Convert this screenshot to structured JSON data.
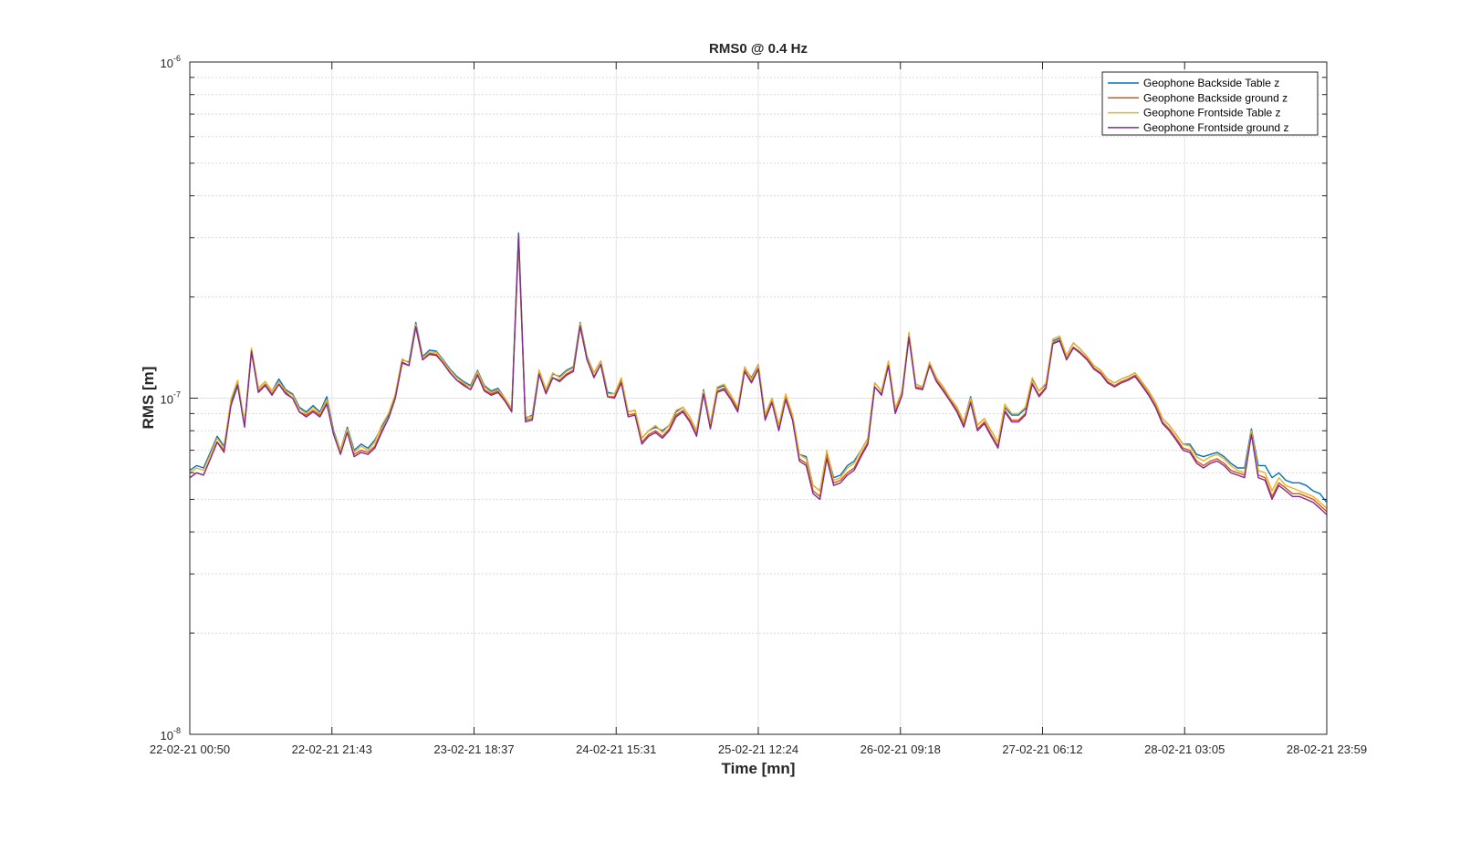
{
  "chart_data": {
    "type": "line",
    "title": "RMS0 @ 0.4 Hz",
    "xlabel": "Time [mn]",
    "ylabel": "RMS [m]",
    "yscale": "log",
    "ylim": [
      1e-08,
      1e-06
    ],
    "ytick_labels": [
      {
        "base": "10",
        "exp": "-8",
        "value": 1e-08
      },
      {
        "base": "10",
        "exp": "-7",
        "value": 1e-07
      },
      {
        "base": "10",
        "exp": "-6",
        "value": 1e-06
      }
    ],
    "xtick_labels": [
      "22-02-21 00:50",
      "22-02-21 21:43",
      "23-02-21 18:37",
      "24-02-21 15:31",
      "25-02-21 12:24",
      "26-02-21 09:18",
      "27-02-21 06:12",
      "28-02-21 03:05",
      "28-02-21 23:59"
    ],
    "grid": true,
    "legend_position": "top-right",
    "series": [
      {
        "name": "Geophone Backside Table z",
        "color": "#0072BD",
        "values": [
          6.1e-08,
          6.3e-08,
          6.2e-08,
          6.9e-08,
          7.7e-08,
          7.2e-08,
          9.7e-08,
          1.12e-07,
          8.4e-08,
          1.4e-07,
          1.07e-07,
          1.12e-07,
          1.05e-07,
          1.14e-07,
          1.06e-07,
          1.03e-07,
          9.4e-08,
          9.1e-08,
          9.5e-08,
          9.1e-08,
          1.01e-07,
          8e-08,
          7e-08,
          8.2e-08,
          7e-08,
          7.3e-08,
          7.1e-08,
          7.5e-08,
          8.2e-08,
          8.9e-08,
          1.02e-07,
          1.3e-07,
          1.28e-07,
          1.68e-07,
          1.33e-07,
          1.39e-07,
          1.38e-07,
          1.3e-07,
          1.22e-07,
          1.16e-07,
          1.12e-07,
          1.09e-07,
          1.21e-07,
          1.09e-07,
          1.05e-07,
          1.07e-07,
          1e-07,
          9.3e-08,
          3.1e-07,
          8.7e-08,
          8.9e-08,
          1.21e-07,
          1.06e-07,
          1.18e-07,
          1.16e-07,
          1.21e-07,
          1.24e-07,
          1.68e-07,
          1.33e-07,
          1.19e-07,
          1.29e-07,
          1.04e-07,
          1.03e-07,
          1.14e-07,
          9.1e-08,
          9.2e-08,
          7.6e-08,
          8e-08,
          8.2e-08,
          8e-08,
          8.3e-08,
          9.1e-08,
          9.4e-08,
          8.8e-08,
          8e-08,
          1.06e-07,
          8.4e-08,
          1.07e-07,
          1.09e-07,
          1.02e-07,
          9.3e-08,
          1.23e-07,
          1.15e-07,
          1.26e-07,
          8.9e-08,
          1e-07,
          8.3e-08,
          1.02e-07,
          8.9e-08,
          6.8e-08,
          6.7e-08,
          5.5e-08,
          5.3e-08,
          6.9e-08,
          5.8e-08,
          5.9e-08,
          6.3e-08,
          6.5e-08,
          7e-08,
          7.6e-08,
          1.11e-07,
          1.05e-07,
          1.28e-07,
          9.3e-08,
          1.05e-07,
          1.55e-07,
          1.1e-07,
          1.08e-07,
          1.27e-07,
          1.15e-07,
          1.08e-07,
          1e-07,
          9.4e-08,
          8.5e-08,
          1.01e-07,
          8.3e-08,
          8.7e-08,
          8e-08,
          7.4e-08,
          9.4e-08,
          8.9e-08,
          8.9e-08,
          9.3e-08,
          1.14e-07,
          1.05e-07,
          1.1e-07,
          1.48e-07,
          1.51e-07,
          1.34e-07,
          1.46e-07,
          1.4e-07,
          1.33e-07,
          1.25e-07,
          1.21e-07,
          1.14e-07,
          1.11e-07,
          1.14e-07,
          1.16e-07,
          1.19e-07,
          1.12e-07,
          1.05e-07,
          9.7e-08,
          8.7e-08,
          8.3e-08,
          7.8e-08,
          7.3e-08,
          7.3e-08,
          6.8e-08,
          6.7e-08,
          6.8e-08,
          6.9e-08,
          6.7e-08,
          6.4e-08,
          6.2e-08,
          6.2e-08,
          8.1e-08,
          6.3e-08,
          6.3e-08,
          5.8e-08,
          6e-08,
          5.7e-08,
          5.6e-08,
          5.6e-08,
          5.5e-08,
          5.3e-08,
          5.2e-08,
          4.9e-08
        ]
      },
      {
        "name": "Geophone Backside ground z",
        "color": "#D95319",
        "values": [
          5.8e-08,
          6e-08,
          5.9e-08,
          6.6e-08,
          7.4e-08,
          7e-08,
          9.5e-08,
          1.09e-07,
          8.3e-08,
          1.37e-07,
          1.05e-07,
          1.1e-07,
          1.03e-07,
          1.1e-07,
          1.04e-07,
          1e-07,
          9.1e-08,
          8.9e-08,
          9.2e-08,
          8.9e-08,
          9.7e-08,
          7.8e-08,
          6.9e-08,
          8e-08,
          6.8e-08,
          7e-08,
          6.9e-08,
          7.2e-08,
          8e-08,
          8.7e-08,
          1e-07,
          1.27e-07,
          1.25e-07,
          1.63e-07,
          1.3e-07,
          1.36e-07,
          1.35e-07,
          1.27e-07,
          1.19e-07,
          1.13e-07,
          1.1e-07,
          1.06e-07,
          1.18e-07,
          1.06e-07,
          1.03e-07,
          1.05e-07,
          9.9e-08,
          9.2e-08,
          2.9e-07,
          8.6e-08,
          8.7e-08,
          1.18e-07,
          1.04e-07,
          1.15e-07,
          1.13e-07,
          1.18e-07,
          1.21e-07,
          1.63e-07,
          1.3e-07,
          1.16e-07,
          1.26e-07,
          1.01e-07,
          1.01e-07,
          1.12e-07,
          8.9e-08,
          9e-08,
          7.4e-08,
          7.8e-08,
          8e-08,
          7.7e-08,
          8.1e-08,
          8.9e-08,
          9.2e-08,
          8.6e-08,
          7.8e-08,
          1.03e-07,
          8.2e-08,
          1.05e-07,
          1.07e-07,
          1e-07,
          9.2e-08,
          1.21e-07,
          1.12e-07,
          1.23e-07,
          8.7e-08,
          9.8e-08,
          8.1e-08,
          1e-07,
          8.7e-08,
          6.6e-08,
          6.4e-08,
          5.3e-08,
          5.1e-08,
          6.7e-08,
          5.6e-08,
          5.7e-08,
          6e-08,
          6.2e-08,
          6.8e-08,
          7.4e-08,
          1.08e-07,
          1.03e-07,
          1.25e-07,
          9.1e-08,
          1.03e-07,
          1.51e-07,
          1.08e-07,
          1.07e-07,
          1.26e-07,
          1.13e-07,
          1.06e-07,
          9.9e-08,
          9.2e-08,
          8.3e-08,
          9.8e-08,
          8.1e-08,
          8.5e-08,
          7.8e-08,
          7.2e-08,
          9.2e-08,
          8.6e-08,
          8.6e-08,
          9e-08,
          1.11e-07,
          1.02e-07,
          1.08e-07,
          1.46e-07,
          1.49e-07,
          1.31e-07,
          1.42e-07,
          1.37e-07,
          1.31e-07,
          1.23e-07,
          1.19e-07,
          1.12e-07,
          1.09e-07,
          1.12e-07,
          1.14e-07,
          1.17e-07,
          1.1e-07,
          1.03e-07,
          9.5e-08,
          8.5e-08,
          8.1e-08,
          7.6e-08,
          7.1e-08,
          7e-08,
          6.5e-08,
          6.3e-08,
          6.5e-08,
          6.6e-08,
          6.4e-08,
          6.1e-08,
          6e-08,
          5.9e-08,
          7.9e-08,
          5.9e-08,
          5.8e-08,
          5.1e-08,
          5.6e-08,
          5.4e-08,
          5.2e-08,
          5.2e-08,
          5.1e-08,
          5e-08,
          4.8e-08,
          4.6e-08
        ]
      },
      {
        "name": "Geophone Frontside Table z",
        "color": "#EDB120",
        "values": [
          6e-08,
          6.2e-08,
          6.1e-08,
          6.8e-08,
          7.6e-08,
          7.1e-08,
          9.9e-08,
          1.13e-07,
          8.4e-08,
          1.41e-07,
          1.07e-07,
          1.12e-07,
          1.05e-07,
          1.12e-07,
          1.05e-07,
          1.02e-07,
          9.3e-08,
          9e-08,
          9.4e-08,
          9e-08,
          9.9e-08,
          7.9e-08,
          7e-08,
          8.1e-08,
          6.9e-08,
          7.2e-08,
          7e-08,
          7.4e-08,
          8.3e-08,
          9e-08,
          1.03e-07,
          1.31e-07,
          1.27e-07,
          1.66e-07,
          1.32e-07,
          1.37e-07,
          1.37e-07,
          1.29e-07,
          1.21e-07,
          1.15e-07,
          1.11e-07,
          1.08e-07,
          1.2e-07,
          1.08e-07,
          1.04e-07,
          1.06e-07,
          1e-07,
          9.3e-08,
          3e-07,
          8.8e-08,
          8.8e-08,
          1.21e-07,
          1.06e-07,
          1.19e-07,
          1.15e-07,
          1.2e-07,
          1.23e-07,
          1.67e-07,
          1.32e-07,
          1.19e-07,
          1.29e-07,
          1.03e-07,
          1.03e-07,
          1.15e-07,
          9.1e-08,
          9.2e-08,
          7.6e-08,
          8e-08,
          8.3e-08,
          7.9e-08,
          8.3e-08,
          9.2e-08,
          9.4e-08,
          8.8e-08,
          8e-08,
          1.05e-07,
          8.4e-08,
          1.08e-07,
          1.1e-07,
          1.02e-07,
          9.4e-08,
          1.24e-07,
          1.14e-07,
          1.26e-07,
          8.9e-08,
          1e-07,
          8.3e-08,
          1.03e-07,
          8.9e-08,
          6.8e-08,
          6.6e-08,
          5.5e-08,
          5.3e-08,
          7e-08,
          5.7e-08,
          5.8e-08,
          6.2e-08,
          6.4e-08,
          7e-08,
          7.6e-08,
          1.11e-07,
          1.05e-07,
          1.29e-07,
          9.3e-08,
          1.05e-07,
          1.57e-07,
          1.1e-07,
          1.08e-07,
          1.28e-07,
          1.15e-07,
          1.08e-07,
          1e-07,
          9.4e-08,
          8.5e-08,
          1e-07,
          8.3e-08,
          8.7e-08,
          8e-08,
          7.4e-08,
          9.6e-08,
          9e-08,
          9e-08,
          9.4e-08,
          1.15e-07,
          1.05e-07,
          1.11e-07,
          1.5e-07,
          1.53e-07,
          1.34e-07,
          1.46e-07,
          1.4e-07,
          1.33e-07,
          1.25e-07,
          1.21e-07,
          1.14e-07,
          1.11e-07,
          1.14e-07,
          1.16e-07,
          1.19e-07,
          1.12e-07,
          1.05e-07,
          9.7e-08,
          8.7e-08,
          8.3e-08,
          7.8e-08,
          7.3e-08,
          7.2e-08,
          6.7e-08,
          6.5e-08,
          6.7e-08,
          6.8e-08,
          6.6e-08,
          6.3e-08,
          6.1e-08,
          6e-08,
          8e-08,
          6.1e-08,
          6e-08,
          5.3e-08,
          5.8e-08,
          5.5e-08,
          5.4e-08,
          5.3e-08,
          5.2e-08,
          5.1e-08,
          4.9e-08,
          4.7e-08
        ]
      },
      {
        "name": "Geophone Frontside ground z",
        "color": "#7E2F8E",
        "values": [
          5.8e-08,
          6e-08,
          5.9e-08,
          6.6e-08,
          7.4e-08,
          6.9e-08,
          9.5e-08,
          1.09e-07,
          8.2e-08,
          1.38e-07,
          1.04e-07,
          1.09e-07,
          1.02e-07,
          1.1e-07,
          1.03e-07,
          1e-07,
          9.1e-08,
          8.8e-08,
          9.1e-08,
          8.8e-08,
          9.6e-08,
          7.8e-08,
          6.8e-08,
          7.9e-08,
          6.7e-08,
          6.9e-08,
          6.8e-08,
          7.1e-08,
          7.9e-08,
          8.7e-08,
          1e-07,
          1.28e-07,
          1.25e-07,
          1.63e-07,
          1.3e-07,
          1.35e-07,
          1.34e-07,
          1.27e-07,
          1.19e-07,
          1.13e-07,
          1.09e-07,
          1.06e-07,
          1.17e-07,
          1.05e-07,
          1.02e-07,
          1.04e-07,
          9.8e-08,
          9.1e-08,
          3.05e-07,
          8.5e-08,
          8.6e-08,
          1.18e-07,
          1.03e-07,
          1.15e-07,
          1.12e-07,
          1.17e-07,
          1.2e-07,
          1.64e-07,
          1.3e-07,
          1.15e-07,
          1.26e-07,
          1.01e-07,
          1e-07,
          1.11e-07,
          8.8e-08,
          8.9e-08,
          7.3e-08,
          7.7e-08,
          7.9e-08,
          7.6e-08,
          8e-08,
          8.8e-08,
          9.1e-08,
          8.5e-08,
          7.7e-08,
          1.03e-07,
          8.1e-08,
          1.04e-07,
          1.06e-07,
          9.9e-08,
          9.1e-08,
          1.2e-07,
          1.11e-07,
          1.22e-07,
          8.6e-08,
          9.7e-08,
          8e-08,
          9.9e-08,
          8.6e-08,
          6.5e-08,
          6.3e-08,
          5.2e-08,
          5e-08,
          6.6e-08,
          5.5e-08,
          5.6e-08,
          5.9e-08,
          6.1e-08,
          6.7e-08,
          7.3e-08,
          1.08e-07,
          1.02e-07,
          1.25e-07,
          9e-08,
          1.02e-07,
          1.52e-07,
          1.07e-07,
          1.06e-07,
          1.25e-07,
          1.12e-07,
          1.05e-07,
          9.8e-08,
          9.1e-08,
          8.2e-08,
          9.7e-08,
          8e-08,
          8.4e-08,
          7.7e-08,
          7.1e-08,
          9.1e-08,
          8.5e-08,
          8.5e-08,
          8.9e-08,
          1.1e-07,
          1.01e-07,
          1.07e-07,
          1.45e-07,
          1.48e-07,
          1.3e-07,
          1.41e-07,
          1.36e-07,
          1.3e-07,
          1.22e-07,
          1.18e-07,
          1.11e-07,
          1.08e-07,
          1.11e-07,
          1.13e-07,
          1.16e-07,
          1.09e-07,
          1.02e-07,
          9.4e-08,
          8.4e-08,
          8e-08,
          7.5e-08,
          7e-08,
          6.9e-08,
          6.4e-08,
          6.2e-08,
          6.4e-08,
          6.5e-08,
          6.3e-08,
          6e-08,
          5.9e-08,
          5.8e-08,
          7.8e-08,
          5.8e-08,
          5.7e-08,
          5e-08,
          5.5e-08,
          5.3e-08,
          5.1e-08,
          5.1e-08,
          5e-08,
          4.9e-08,
          4.7e-08,
          4.5e-08
        ]
      }
    ]
  }
}
